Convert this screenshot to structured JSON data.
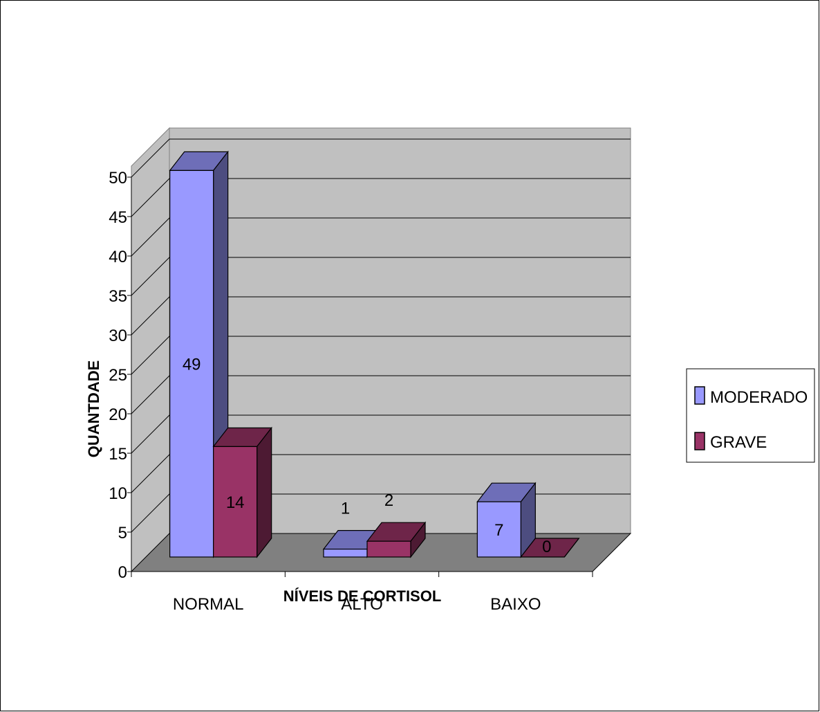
{
  "chart_data": {
    "type": "bar",
    "categories": [
      "NORMAL",
      "ALTO",
      "BAIXO"
    ],
    "series": [
      {
        "name": "MODERADO",
        "values": [
          49,
          1,
          7
        ],
        "color": "#9999ff"
      },
      {
        "name": "GRAVE",
        "values": [
          14,
          2,
          0
        ],
        "color": "#993366"
      }
    ],
    "title": "",
    "xlabel": "NÍVEIS DE CORTISOL",
    "ylabel": "QUANTDADE",
    "ylim": [
      0,
      50
    ],
    "yticks": [
      "0",
      "5",
      "10",
      "15",
      "20",
      "25",
      "30",
      "35",
      "40",
      "45",
      "50"
    ],
    "grid": true,
    "legend": "right",
    "wall_color": "#c0c0c0",
    "floor_color": "#808080"
  }
}
